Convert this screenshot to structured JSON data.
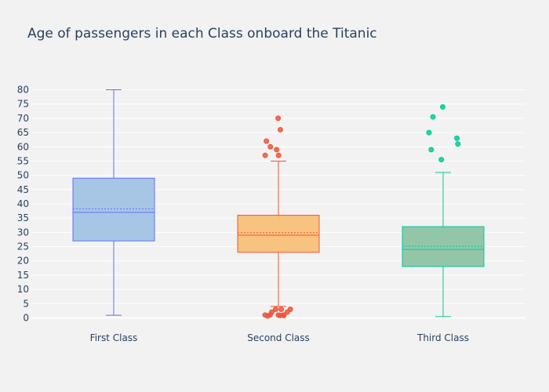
{
  "chart_data": {
    "type": "box",
    "title": "Age of passengers in each Class onboard the Titanic",
    "xlabel": "",
    "ylabel": "",
    "categories": [
      "First Class",
      "Second Class",
      "Third Class"
    ],
    "ylim": [
      -4,
      84
    ],
    "yticks": [
      0,
      5,
      10,
      15,
      20,
      25,
      30,
      35,
      40,
      45,
      50,
      55,
      60,
      65,
      70,
      75,
      80
    ],
    "grid": true,
    "legend": "none",
    "series": [
      {
        "category": "First Class",
        "color": "#636efa",
        "fill": "#a7c6e6",
        "min": 0.92,
        "q1": 27,
        "median": 37,
        "mean": 38.2,
        "q3": 49,
        "max": 80,
        "outliers": []
      },
      {
        "category": "Second Class",
        "color": "#ef553b",
        "fill": "#f8c27f",
        "min": 4,
        "q1": 23,
        "median": 29,
        "mean": 29.9,
        "q3": 36,
        "max": 55,
        "outliers": [
          70,
          66,
          62,
          60,
          59,
          57,
          57,
          3,
          3,
          3,
          2,
          2,
          1,
          1,
          1,
          1,
          0.83,
          0.67,
          0.83
        ]
      },
      {
        "category": "Third Class",
        "color": "#00cc96",
        "fill": "#93c6a9",
        "min": 0.42,
        "q1": 18,
        "median": 24,
        "mean": 25.1,
        "q3": 32,
        "max": 51,
        "outliers": [
          74,
          70.5,
          65,
          63,
          61,
          59,
          55.5
        ]
      }
    ]
  }
}
